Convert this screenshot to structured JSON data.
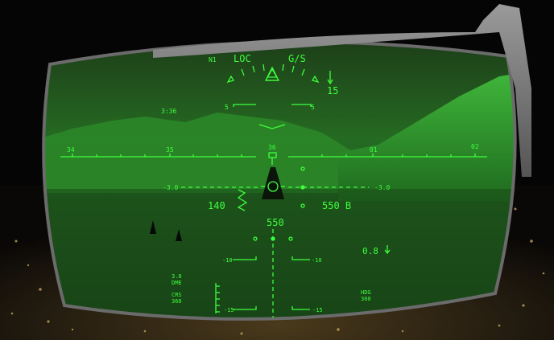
{
  "hud": {
    "mode_label": "N1",
    "loc_label": "LOC",
    "gs_label": "G/S",
    "vs_value": "15",
    "time_label": "3:36",
    "pitch_5_left": "5",
    "pitch_5_right": "5",
    "pitch_m3_left": "-3.0",
    "pitch_m3_right": "-3.0",
    "pitch_m10_left": "-10",
    "pitch_m10_right": "-10",
    "pitch_m15_left": "-15",
    "pitch_m15_right": "-15",
    "heading_ticks": [
      "34",
      "35",
      "36",
      "01",
      "02"
    ],
    "speed_value": "140",
    "altitude_value": "550 B",
    "radio_alt_value": "550",
    "mach_value": "0.8",
    "dme_value": "3.0",
    "dme_label": "DME",
    "crs_label": "CRS",
    "crs_value": "360",
    "hdg_label": "HDG",
    "hdg_value": "360",
    "hud_color": "#3dff3d"
  }
}
